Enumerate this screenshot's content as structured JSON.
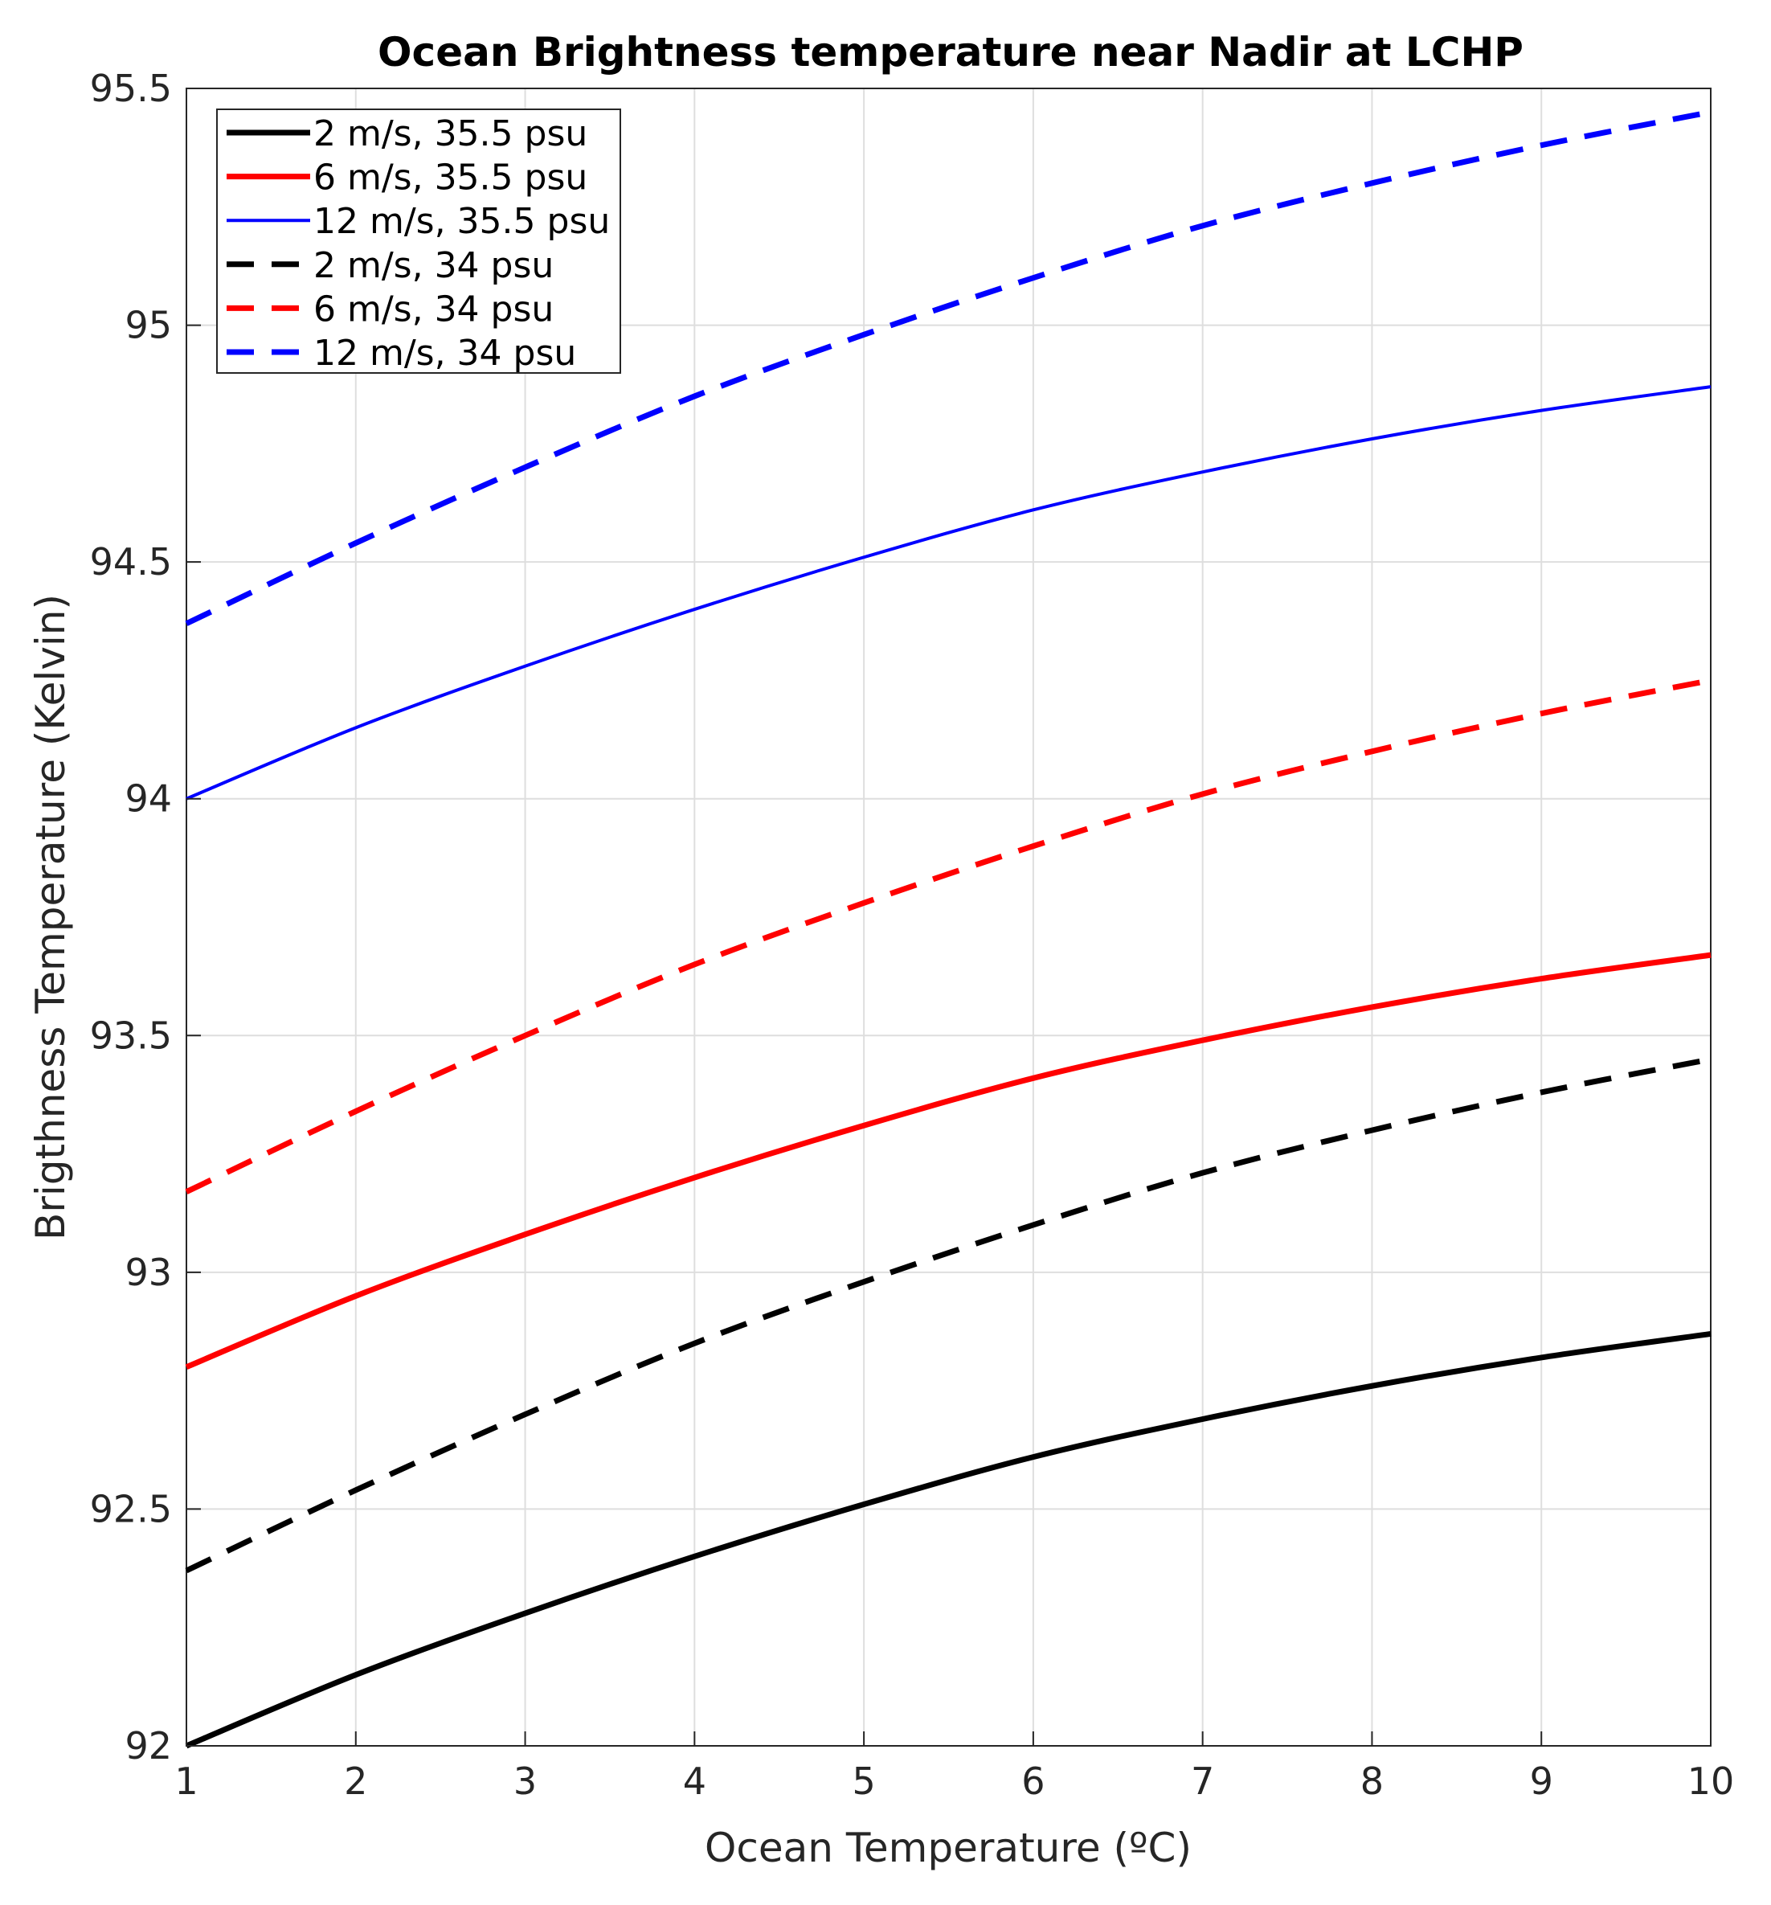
{
  "chart_data": {
    "type": "line",
    "title": "Ocean Brightness temperature near Nadir at LCHP",
    "xlabel": "Ocean Temperature (ºC)",
    "ylabel": "Brigthness Temperature (Kelvin)",
    "xlim": [
      1,
      10
    ],
    "ylim": [
      92,
      95.5
    ],
    "xticks": [
      1,
      2,
      3,
      4,
      5,
      6,
      7,
      8,
      9,
      10
    ],
    "xtick_labels": [
      "1",
      "2",
      "3",
      "4",
      "5",
      "6",
      "7",
      "8",
      "9",
      "10"
    ],
    "yticks": [
      92,
      92.5,
      93,
      93.5,
      94,
      94.5,
      95,
      95.5
    ],
    "ytick_labels": [
      "92",
      "92.5",
      "93",
      "93.5",
      "94",
      "94.5",
      "95",
      "95.5"
    ],
    "grid": true,
    "legend_position": "top-left",
    "x": [
      1,
      2,
      3,
      4,
      5,
      6,
      7,
      8,
      9,
      10
    ],
    "series": [
      {
        "name": "2 m/s, 35.5 psu",
        "color": "#000000",
        "style": "solid",
        "weight": "thick",
        "values": [
          92.0,
          92.15,
          92.28,
          92.4,
          92.51,
          92.61,
          92.69,
          92.76,
          92.82,
          92.87
        ]
      },
      {
        "name": "6 m/s, 35.5 psu",
        "color": "#ff0000",
        "style": "solid",
        "weight": "thick",
        "values": [
          92.8,
          92.95,
          93.08,
          93.2,
          93.31,
          93.41,
          93.49,
          93.56,
          93.62,
          93.67
        ]
      },
      {
        "name": "12 m/s, 35.5 psu",
        "color": "#0000ff",
        "style": "solid",
        "weight": "thin",
        "values": [
          94.0,
          94.15,
          94.28,
          94.4,
          94.51,
          94.61,
          94.69,
          94.76,
          94.82,
          94.87
        ]
      },
      {
        "name": "2 m/s, 34 psu",
        "color": "#000000",
        "style": "dashed",
        "weight": "thick",
        "values": [
          92.37,
          92.54,
          92.7,
          92.85,
          92.98,
          93.1,
          93.21,
          93.3,
          93.38,
          93.45
        ]
      },
      {
        "name": "6 m/s, 34 psu",
        "color": "#ff0000",
        "style": "dashed",
        "weight": "thick",
        "values": [
          93.17,
          93.34,
          93.5,
          93.65,
          93.78,
          93.9,
          94.01,
          94.1,
          94.18,
          94.25
        ]
      },
      {
        "name": "12 m/s, 34 psu",
        "color": "#0000ff",
        "style": "dashed",
        "weight": "thick",
        "values": [
          94.37,
          94.54,
          94.7,
          94.85,
          94.98,
          95.1,
          95.21,
          95.3,
          95.38,
          95.45
        ]
      }
    ]
  }
}
